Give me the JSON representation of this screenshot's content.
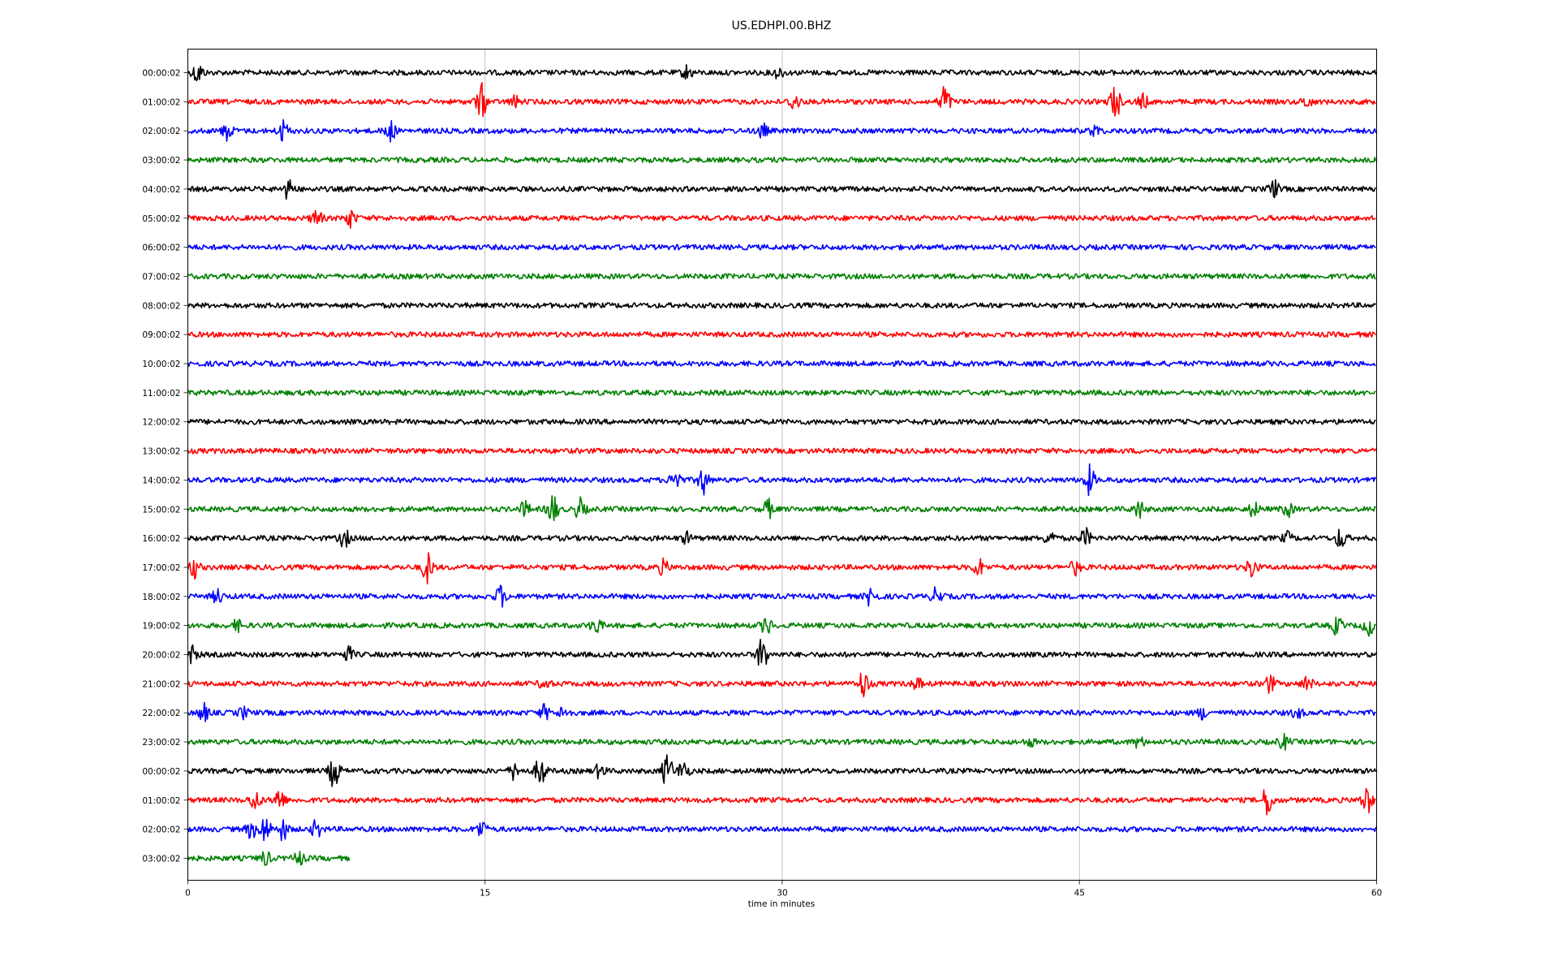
{
  "chart_data": {
    "type": "line",
    "title": "US.EDHPI.00.BHZ",
    "xlabel": "time in minutes",
    "xlim": [
      0,
      60
    ],
    "x_ticks": [
      "0",
      "15",
      "30",
      "45",
      "60"
    ],
    "grid": "vertical",
    "colors": [
      "#000000",
      "#ff0000",
      "#0000ff",
      "#008000"
    ],
    "row_minutes": 60,
    "series": [
      {
        "label": "00:00:02",
        "color": "#000000",
        "end_minute": 60,
        "events": [
          {
            "t": 0.5,
            "a": 0.6
          },
          {
            "t": 25.2,
            "a": 0.4
          },
          {
            "t": 29.8,
            "a": 0.3
          }
        ]
      },
      {
        "label": "01:00:02",
        "color": "#ff0000",
        "end_minute": 60,
        "events": [
          {
            "t": 14.8,
            "a": 1.0
          },
          {
            "t": 16.5,
            "a": 0.3
          },
          {
            "t": 30.6,
            "a": 0.5
          },
          {
            "t": 38.2,
            "a": 1.0
          },
          {
            "t": 46.8,
            "a": 1.0
          },
          {
            "t": 48.2,
            "a": 0.4
          },
          {
            "t": 56.5,
            "a": 0.3
          }
        ]
      },
      {
        "label": "02:00:02",
        "color": "#0000ff",
        "end_minute": 60,
        "events": [
          {
            "t": 2.0,
            "a": 0.5
          },
          {
            "t": 4.8,
            "a": 0.6
          },
          {
            "t": 10.2,
            "a": 0.6
          },
          {
            "t": 29.0,
            "a": 0.4
          },
          {
            "t": 45.8,
            "a": 0.3
          }
        ]
      },
      {
        "label": "03:00:02",
        "color": "#008000",
        "end_minute": 60,
        "events": []
      },
      {
        "label": "04:00:02",
        "color": "#000000",
        "end_minute": 60,
        "events": [
          {
            "t": 5.1,
            "a": 0.6
          },
          {
            "t": 54.8,
            "a": 0.5
          }
        ]
      },
      {
        "label": "05:00:02",
        "color": "#ff0000",
        "end_minute": 60,
        "events": [
          {
            "t": 6.5,
            "a": 0.5
          },
          {
            "t": 8.2,
            "a": 0.5
          }
        ]
      },
      {
        "label": "06:00:02",
        "color": "#0000ff",
        "end_minute": 60,
        "events": []
      },
      {
        "label": "07:00:02",
        "color": "#008000",
        "end_minute": 60,
        "events": []
      },
      {
        "label": "08:00:02",
        "color": "#000000",
        "end_minute": 60,
        "events": []
      },
      {
        "label": "09:00:02",
        "color": "#ff0000",
        "end_minute": 60,
        "events": []
      },
      {
        "label": "10:00:02",
        "color": "#0000ff",
        "end_minute": 60,
        "events": []
      },
      {
        "label": "11:00:02",
        "color": "#008000",
        "end_minute": 60,
        "events": []
      },
      {
        "label": "12:00:02",
        "color": "#000000",
        "end_minute": 60,
        "events": []
      },
      {
        "label": "13:00:02",
        "color": "#ff0000",
        "end_minute": 60,
        "events": []
      },
      {
        "label": "14:00:02",
        "color": "#0000ff",
        "end_minute": 60,
        "events": [
          {
            "t": 24.6,
            "a": 0.7
          },
          {
            "t": 26.0,
            "a": 0.8
          },
          {
            "t": 45.5,
            "a": 0.8
          }
        ]
      },
      {
        "label": "15:00:02",
        "color": "#008000",
        "end_minute": 60,
        "events": [
          {
            "t": 17.0,
            "a": 0.4
          },
          {
            "t": 18.4,
            "a": 0.9
          },
          {
            "t": 19.8,
            "a": 0.6
          },
          {
            "t": 29.3,
            "a": 0.5
          },
          {
            "t": 48.0,
            "a": 0.5
          },
          {
            "t": 53.8,
            "a": 0.4
          },
          {
            "t": 55.5,
            "a": 0.4
          }
        ]
      },
      {
        "label": "16:00:02",
        "color": "#000000",
        "end_minute": 60,
        "events": [
          {
            "t": 7.9,
            "a": 0.5
          },
          {
            "t": 25.2,
            "a": 0.3
          },
          {
            "t": 43.5,
            "a": 0.4
          },
          {
            "t": 45.3,
            "a": 0.5
          },
          {
            "t": 55.5,
            "a": 0.3
          },
          {
            "t": 58.2,
            "a": 0.6
          }
        ]
      },
      {
        "label": "17:00:02",
        "color": "#ff0000",
        "end_minute": 60,
        "events": [
          {
            "t": 0.3,
            "a": 0.6
          },
          {
            "t": 12.1,
            "a": 0.9
          },
          {
            "t": 24.0,
            "a": 0.4
          },
          {
            "t": 39.9,
            "a": 0.5
          },
          {
            "t": 44.8,
            "a": 0.4
          },
          {
            "t": 53.7,
            "a": 0.6
          }
        ]
      },
      {
        "label": "18:00:02",
        "color": "#0000ff",
        "end_minute": 60,
        "events": [
          {
            "t": 1.5,
            "a": 0.4
          },
          {
            "t": 15.8,
            "a": 0.6
          },
          {
            "t": 34.5,
            "a": 0.6
          },
          {
            "t": 37.8,
            "a": 0.5
          }
        ]
      },
      {
        "label": "19:00:02",
        "color": "#008000",
        "end_minute": 60,
        "events": [
          {
            "t": 2.5,
            "a": 0.3
          },
          {
            "t": 20.6,
            "a": 0.5
          },
          {
            "t": 29.2,
            "a": 0.5
          },
          {
            "t": 58.0,
            "a": 0.5
          },
          {
            "t": 59.6,
            "a": 0.5
          }
        ]
      },
      {
        "label": "20:00:02",
        "color": "#000000",
        "end_minute": 60,
        "events": [
          {
            "t": 0.2,
            "a": 0.5
          },
          {
            "t": 8.1,
            "a": 0.4
          },
          {
            "t": 29.0,
            "a": 1.0
          }
        ]
      },
      {
        "label": "21:00:02",
        "color": "#ff0000",
        "end_minute": 60,
        "events": [
          {
            "t": 18.0,
            "a": 0.3
          },
          {
            "t": 34.1,
            "a": 0.8
          },
          {
            "t": 36.8,
            "a": 0.3
          },
          {
            "t": 54.6,
            "a": 0.5
          },
          {
            "t": 56.5,
            "a": 0.4
          }
        ]
      },
      {
        "label": "22:00:02",
        "color": "#0000ff",
        "end_minute": 60,
        "events": [
          {
            "t": 0.8,
            "a": 0.5
          },
          {
            "t": 2.8,
            "a": 0.3
          },
          {
            "t": 18.0,
            "a": 0.4
          },
          {
            "t": 19.0,
            "a": 0.4
          },
          {
            "t": 51.2,
            "a": 0.3
          },
          {
            "t": 56.0,
            "a": 0.3
          }
        ]
      },
      {
        "label": "23:00:02",
        "color": "#008000",
        "end_minute": 60,
        "events": [
          {
            "t": 42.5,
            "a": 0.2
          },
          {
            "t": 48.0,
            "a": 0.3
          },
          {
            "t": 55.3,
            "a": 0.4
          }
        ]
      },
      {
        "label": "00:00:02",
        "color": "#000000",
        "end_minute": 60,
        "events": [
          {
            "t": 7.4,
            "a": 1.0
          },
          {
            "t": 16.5,
            "a": 0.5
          },
          {
            "t": 17.8,
            "a": 0.9
          },
          {
            "t": 24.2,
            "a": 1.0
          },
          {
            "t": 25.0,
            "a": 0.6
          },
          {
            "t": 20.8,
            "a": 0.4
          }
        ]
      },
      {
        "label": "01:00:02",
        "color": "#ff0000",
        "end_minute": 60,
        "events": [
          {
            "t": 3.4,
            "a": 0.6
          },
          {
            "t": 4.6,
            "a": 0.7
          },
          {
            "t": 54.5,
            "a": 0.9
          },
          {
            "t": 59.5,
            "a": 0.8
          }
        ]
      },
      {
        "label": "02:00:02",
        "color": "#0000ff",
        "end_minute": 60,
        "events": [
          {
            "t": 3.2,
            "a": 0.5
          },
          {
            "t": 3.9,
            "a": 0.8
          },
          {
            "t": 4.8,
            "a": 0.6
          },
          {
            "t": 6.5,
            "a": 0.5
          },
          {
            "t": 14.8,
            "a": 0.5
          }
        ]
      },
      {
        "label": "03:00:02",
        "color": "#008000",
        "end_minute": 8.2,
        "events": [
          {
            "t": 3.9,
            "a": 0.4
          },
          {
            "t": 5.6,
            "a": 0.4
          }
        ]
      }
    ]
  }
}
